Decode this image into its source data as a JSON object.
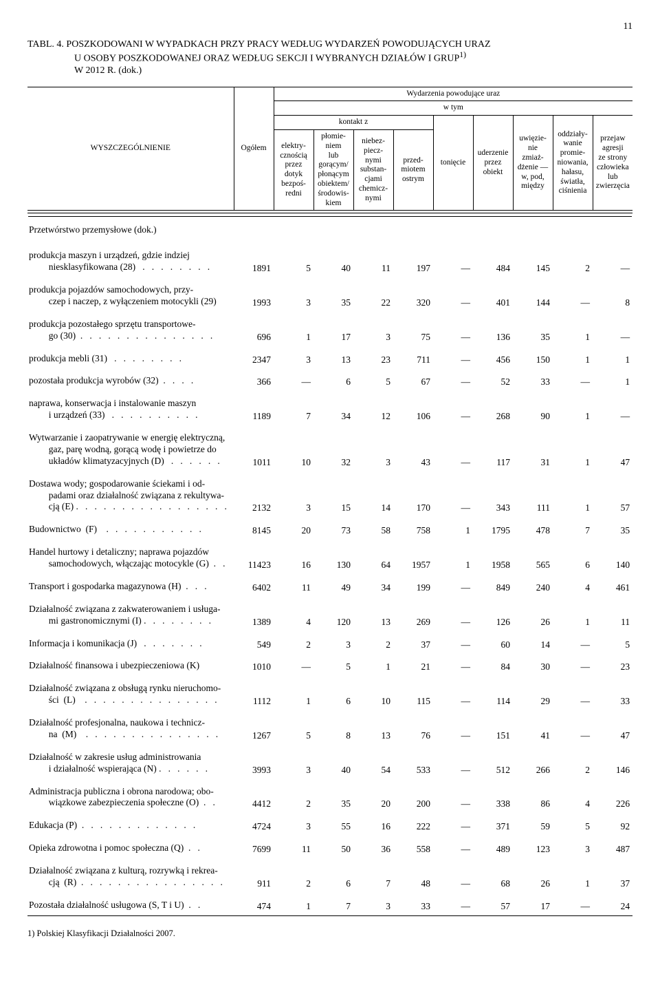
{
  "page_number": "11",
  "title": {
    "l1": "TABL. 4. POSZKODOWANI W WYPADKACH PRZY PRACY WEDŁUG WYDARZEŃ POWODUJĄCYCH URAZ",
    "l2": "U OSOBY POSZKODOWANEJ ORAZ WEDŁUG SEKCJI I WYBRANYCH DZIAŁÓW I GRUP",
    "l2sup": "1)",
    "l3": "W 2012 R. (dok.)"
  },
  "header": {
    "wyszcz": "WYSZCZEGÓLNIENIE",
    "ogolem": "Ogółem",
    "wydarzenia": "Wydarzenia powodujące uraz",
    "wtym": "w tym",
    "kontakt": "kontakt z",
    "c1": "elektry-\ncznością\nprzez\ndotyk\nbezpoś-\nredni",
    "c2": "płomie-\nniem\nlub\ngorącym/\npłonącym\nobiektem/\nśrodowis-\nkiem",
    "c3": "niebez-\npiecz-\nnymi\nsubstan-\ncjami\nchemicz-\nnymi",
    "c4": "przed-\nmiotem\nostrym",
    "c5": "tonięcie",
    "c6": "uderzenie\nprzez\nobiekt",
    "c7": "uwięzie-\nnie\nzmiaż-\ndżenie —\nw, pod,\nmiędzy",
    "c8": "oddziały-\nwanie\npromie-\nniowania,\nhałasu,\nświatła,\nciśnienia",
    "c9": "przejaw\nagresji\nze strony\nczłowieka\nlub\nzwierzęcia"
  },
  "section_title": "Przetwórstwo przemysłowe (dok.)",
  "rows": [
    {
      "indent": true,
      "label": "produkcja maszyn i urządzeń, gdzie indziej\n  niesklasyfikowana (28)   .   .   .   .   .   .   .   .",
      "v": [
        "1891",
        "5",
        "40",
        "11",
        "197",
        "—",
        "484",
        "145",
        "2",
        "—"
      ]
    },
    {
      "indent": true,
      "label": "produkcja pojazdów samochodowych, przy-\n  czep i naczep, z wyłączeniem motocykli (29)",
      "v": [
        "1993",
        "3",
        "35",
        "22",
        "320",
        "—",
        "401",
        "144",
        "—",
        "8"
      ]
    },
    {
      "indent": true,
      "label": "produkcja pozostałego sprzętu transportowe-\n  go (30)  .   .   .   .   .   .   .   .   .   .   .   .   .   .   .",
      "v": [
        "696",
        "1",
        "17",
        "3",
        "75",
        "—",
        "136",
        "35",
        "1",
        "—"
      ]
    },
    {
      "indent": true,
      "label": "produkcja mebli (31)   .   .   .   .   .   .   .   .",
      "v": [
        "2347",
        "3",
        "13",
        "23",
        "711",
        "—",
        "456",
        "150",
        "1",
        "1"
      ]
    },
    {
      "indent": true,
      "label": "pozostała produkcja wyrobów (32)  .   .   .   .",
      "v": [
        "366",
        "—",
        "6",
        "5",
        "67",
        "—",
        "52",
        "33",
        "—",
        "1"
      ]
    },
    {
      "indent": true,
      "label": "naprawa, konserwacja i instalowanie maszyn\n  i urządzeń (33)   .   .   .   .   .   .   .   .   .   .",
      "v": [
        "1189",
        "7",
        "34",
        "12",
        "106",
        "—",
        "268",
        "90",
        "1",
        "—"
      ]
    },
    {
      "indent": false,
      "label": "Wytwarzanie i zaopatrywanie w energię elektryczną,\n  gaz, parę wodną, gorącą wodę i powietrze do\n  układów klimatyzacyjnych (D)   .   .   .   .   .   .",
      "v": [
        "1011",
        "10",
        "32",
        "3",
        "43",
        "—",
        "117",
        "31",
        "1",
        "47"
      ]
    },
    {
      "indent": false,
      "label": "Dostawa wody; gospodarowanie ściekami i od-\n  padami oraz działalność związana z rekultywa-\n  cją (E) .   .   .   .   .   .   .   .   .   .   .   .   .   .   .   .   .",
      "v": [
        "2132",
        "3",
        "15",
        "14",
        "170",
        "—",
        "343",
        "111",
        "1",
        "57"
      ]
    },
    {
      "indent": false,
      "label": "Budownictwo  (F)    .   .   .   .   .   .   .   .   .   .   .",
      "v": [
        "8145",
        "20",
        "73",
        "58",
        "758",
        "1",
        "1795",
        "478",
        "7",
        "35"
      ]
    },
    {
      "indent": false,
      "label": "Handel hurtowy i detaliczny; naprawa pojazdów\n  samochodowych, włączając motocykle (G)  .   .",
      "v": [
        "11423",
        "16",
        "130",
        "64",
        "1957",
        "1",
        "1958",
        "565",
        "6",
        "140"
      ]
    },
    {
      "indent": false,
      "label": "Transport i gospodarka magazynowa (H)  .   .   .",
      "v": [
        "6402",
        "11",
        "49",
        "34",
        "199",
        "—",
        "849",
        "240",
        "4",
        "461"
      ]
    },
    {
      "indent": false,
      "label": "Działalność związana z zakwaterowaniem i usługa-\n  mi gastronomicznymi (I) .   .   .   .   .   .   .   .",
      "v": [
        "1389",
        "4",
        "120",
        "13",
        "269",
        "—",
        "126",
        "26",
        "1",
        "11"
      ]
    },
    {
      "indent": false,
      "label": "Informacja i komunikacja (J)   .   .   .   .   .   .   .",
      "v": [
        "549",
        "2",
        "3",
        "2",
        "37",
        "—",
        "60",
        "14",
        "—",
        "5"
      ]
    },
    {
      "indent": false,
      "label": "Działalność finansowa i ubezpieczeniowa (K)",
      "v": [
        "1010",
        "—",
        "5",
        "1",
        "21",
        "—",
        "84",
        "30",
        "—",
        "23"
      ]
    },
    {
      "indent": false,
      "label": "Działalność związana z obsługą rynku nieruchomo-\n  ści  (L)    .   .   .   .   .   .   .   .   .   .   .   .   .   .   .",
      "v": [
        "1112",
        "1",
        "6",
        "10",
        "115",
        "—",
        "114",
        "29",
        "—",
        "33"
      ]
    },
    {
      "indent": false,
      "label": "Działalność profesjonalna, naukowa i technicz-\n  na  (M)    .   .   .   .   .   .   .   .   .   .   .   .   .   .   .",
      "v": [
        "1267",
        "5",
        "8",
        "13",
        "76",
        "—",
        "151",
        "41",
        "—",
        "47"
      ]
    },
    {
      "indent": false,
      "label": "Działalność w zakresie usług administrowania\n  i działalność wspierająca (N) .   .   .   .   .   .",
      "v": [
        "3993",
        "3",
        "40",
        "54",
        "533",
        "—",
        "512",
        "266",
        "2",
        "146"
      ]
    },
    {
      "indent": false,
      "label": "Administracja publiczna i obrona narodowa; obo-\n  wiązkowe zabezpieczenia społeczne (O)  .   .",
      "v": [
        "4412",
        "2",
        "35",
        "20",
        "200",
        "—",
        "338",
        "86",
        "4",
        "226"
      ]
    },
    {
      "indent": false,
      "label": "Edukacja (P)  .   .   .   .   .   .   .   .   .   .   .   .   .",
      "v": [
        "4724",
        "3",
        "55",
        "16",
        "222",
        "—",
        "371",
        "59",
        "5",
        "92"
      ]
    },
    {
      "indent": false,
      "label": "Opieka zdrowotna i pomoc społeczna (Q)  .   .",
      "v": [
        "7699",
        "11",
        "50",
        "36",
        "558",
        "—",
        "489",
        "123",
        "3",
        "487"
      ]
    },
    {
      "indent": false,
      "label": "Działalność związana z kulturą, rozrywką i rekrea-\n  cją  (R)  .   .   .   .   .   .   .   .   .   .   .   .   .   .   .   .",
      "v": [
        "911",
        "2",
        "6",
        "7",
        "48",
        "—",
        "68",
        "26",
        "1",
        "37"
      ]
    },
    {
      "indent": false,
      "label": "Pozostała działalność usługowa (S, T i U)  .   .",
      "v": [
        "474",
        "1",
        "7",
        "3",
        "33",
        "—",
        "57",
        "17",
        "—",
        "24"
      ]
    }
  ],
  "footnote": "1) Polskiej Klasyfikacji Działalności 2007."
}
